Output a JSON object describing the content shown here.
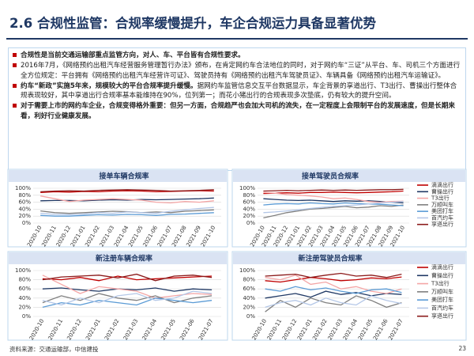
{
  "header": {
    "title": "2.6 合规性监管：合规率缓慢提升，车企合规运力具备显著优势"
  },
  "bullets": [
    {
      "strong": "合规性是当前交通运输部重点监管方向，对人、车、平台皆有合规性要求。"
    },
    {
      "text": "2016年7月，《网络预约出租汽车经营服务管理暂行办法》颁布，在肯定网约车合法地位的同时，对于网约车“三证”从平台、车、司机三个方面进行全方位规定：平台拥有《网络预约出租汽车经营许可证》、驾驶员持有《网络预约出租汽车驾驶员证》、车辆具备《网络预约出租汽车运输证》。"
    },
    {
      "strong": "约车“新政”实施5年来，规模较大的平台合规率提升缓慢。",
      "text": "据网约车监管信息交互平台数据显示，车企背景的享道出行、T3出行、曹操出行整体合规表现较好，其中享道出行合规率基本能维持在90%，位列第一；而花小猪出行的合规表现多次垫底，仍有较大的提升空间。"
    },
    {
      "strong": "对于需要上市的网约车企业，合规变得格外重要：但另一方面，合规趋严也会加大司机的流失，在一定程度上会限制平台的发展速度，但是长期来看，利好行业健康发展。"
    }
  ],
  "source": "资料来源：交通运输部，中信建投",
  "page_number": "23",
  "chart_data": [
    {
      "type": "line",
      "title": "接单车辆合规率",
      "grid": true,
      "categories": [
        "2020-10",
        "2020-11",
        "2020-12",
        "2021-01",
        "2021-02",
        "2021-03",
        "2021-04",
        "2021-05",
        "2021-06",
        "2021-07",
        "2021-08",
        "2021-09",
        "2021-10"
      ],
      "ylim": [
        0,
        100
      ],
      "yticks": [
        {
          "value": 0,
          "label": "0%"
        },
        {
          "value": 20,
          "label": "20%"
        },
        {
          "value": 40,
          "label": "40%"
        },
        {
          "value": 60,
          "label": "60%"
        },
        {
          "value": 80,
          "label": "80%"
        },
        {
          "value": 100,
          "label": "100%"
        }
      ],
      "series": [
        {
          "name": "滴滴出行",
          "color": "#c00000",
          "values": [
            88,
            90,
            89,
            91,
            90,
            92,
            93,
            92,
            90,
            91,
            92,
            93,
            92
          ]
        },
        {
          "name": "曹操出行",
          "color": "#1f3864",
          "values": [
            64,
            65,
            65,
            64,
            66,
            67,
            66,
            68,
            67,
            68,
            69,
            70,
            72
          ]
        },
        {
          "name": "T3出行",
          "color": "#f4a6a6",
          "values": [
            78,
            70,
            62,
            66,
            68,
            70,
            68,
            66,
            60,
            58,
            62,
            60,
            64
          ]
        },
        {
          "name": "万顺叫车",
          "color": "#7f7f7f",
          "values": [
            35,
            30,
            28,
            30,
            32,
            34,
            33,
            30,
            32,
            30,
            34,
            36,
            38
          ]
        },
        {
          "name": "美团打车",
          "color": "#5b9bd5",
          "values": [
            22,
            20,
            20,
            22,
            24,
            23,
            25,
            24,
            22,
            25,
            26,
            28,
            30
          ]
        },
        {
          "name": "首汽约车",
          "color": "#b4c7e7",
          "values": [
            28,
            25,
            24,
            26,
            30,
            28,
            32,
            30,
            28,
            34,
            38,
            42,
            45
          ]
        },
        {
          "name": "享道出行",
          "color": "#8b1a1a",
          "values": [
            90,
            92,
            93,
            92,
            94,
            95,
            96,
            95,
            94,
            92,
            93,
            94,
            96
          ]
        }
      ]
    },
    {
      "type": "line",
      "title": "接单驾驶员合规率",
      "grid": true,
      "legend": "right",
      "categories": [
        "2020-10",
        "2020-11",
        "2020-12",
        "2021-01",
        "2021-02",
        "2021-03",
        "2021-04",
        "2021-05",
        "2021-06",
        "2021-07",
        "2021-08",
        "2021-09",
        "2021-10"
      ],
      "ylim": [
        0,
        100
      ],
      "yticks": [
        {
          "value": 0,
          "label": "0%"
        },
        {
          "value": 20,
          "label": "20%"
        },
        {
          "value": 40,
          "label": "40%"
        },
        {
          "value": 60,
          "label": "60%"
        },
        {
          "value": 80,
          "label": "80%"
        },
        {
          "value": 100,
          "label": "100%"
        }
      ],
      "series": [
        {
          "name": "滴滴出行",
          "color": "#c00000",
          "values": [
            85,
            86,
            87,
            86,
            88,
            88,
            89,
            88,
            87,
            88,
            89,
            90,
            92
          ]
        },
        {
          "name": "曹操出行",
          "color": "#1f3864",
          "values": [
            70,
            68,
            66,
            65,
            66,
            64,
            62,
            64,
            63,
            64,
            62,
            60,
            58
          ]
        },
        {
          "name": "T3出行",
          "color": "#f4a6a6",
          "values": [
            88,
            86,
            82,
            80,
            78,
            75,
            70,
            72,
            68,
            62,
            60,
            62,
            63
          ]
        },
        {
          "name": "万顺叫车",
          "color": "#7f7f7f",
          "values": [
            15,
            22,
            30,
            35,
            40,
            42,
            45,
            48,
            44,
            46,
            50,
            48,
            52
          ]
        },
        {
          "name": "美团打车",
          "color": "#5b9bd5",
          "values": [
            52,
            55,
            56,
            55,
            58,
            56,
            55,
            58,
            56,
            55,
            54,
            52,
            50
          ]
        },
        {
          "name": "首汽约车",
          "color": "#b4c7e7",
          "values": [
            30,
            32,
            35,
            38,
            42,
            45,
            48,
            50,
            52,
            55,
            58,
            60,
            62
          ]
        },
        {
          "name": "享道出行",
          "color": "#8b1a1a",
          "values": [
            92,
            93,
            94,
            93,
            94,
            95,
            94,
            95,
            94,
            95,
            96,
            96,
            97
          ]
        }
      ]
    },
    {
      "type": "line",
      "title": "新注册车辆合规率",
      "grid": true,
      "categories": [
        "2020-10",
        "2020-11",
        "2020-12",
        "2021-01",
        "2021-02",
        "2021-03",
        "2021-04",
        "2021-05",
        "2021-06",
        "2021-07"
      ],
      "ylim": [
        0,
        100
      ],
      "yticks": [
        {
          "value": 0,
          "label": "0%"
        },
        {
          "value": 20,
          "label": "20%"
        },
        {
          "value": 40,
          "label": "40%"
        },
        {
          "value": 60,
          "label": "60%"
        },
        {
          "value": 80,
          "label": "80%"
        },
        {
          "value": 100,
          "label": "100%"
        }
      ],
      "series": [
        {
          "name": "滴滴出行",
          "color": "#c00000",
          "values": [
            82,
            80,
            85,
            78,
            88,
            80,
            82,
            84,
            86,
            88
          ]
        },
        {
          "name": "曹操出行",
          "color": "#1f3864",
          "values": [
            60,
            62,
            58,
            55,
            60,
            58,
            62,
            55,
            60,
            58
          ]
        },
        {
          "name": "T3出行",
          "color": "#f4a6a6",
          "values": [
            90,
            70,
            50,
            65,
            60,
            55,
            40,
            45,
            50,
            48
          ]
        },
        {
          "name": "万顺叫车",
          "color": "#7f7f7f",
          "values": [
            30,
            45,
            35,
            50,
            40,
            35,
            45,
            30,
            40,
            45
          ]
        },
        {
          "name": "美团打车",
          "color": "#5b9bd5",
          "values": [
            20,
            30,
            25,
            35,
            30,
            25,
            40,
            35,
            30,
            35
          ]
        },
        {
          "name": "首汽约车",
          "color": "#b4c7e7",
          "values": [
            35,
            25,
            40,
            30,
            45,
            50,
            35,
            40,
            55,
            50
          ]
        },
        {
          "name": "享道出行",
          "color": "#8b1a1a",
          "values": [
            80,
            86,
            88,
            90,
            84,
            92,
            78,
            88,
            90,
            85
          ]
        }
      ]
    },
    {
      "type": "line",
      "title": "新注册驾驶员合规率",
      "grid": true,
      "legend": "right",
      "categories": [
        "2020-10",
        "2020-11",
        "2020-12",
        "2021-01",
        "2021-02",
        "2021-03",
        "2021-04",
        "2021-05",
        "2021-06",
        "2021-07"
      ],
      "ylim": [
        0,
        100
      ],
      "yticks": [
        {
          "value": 0,
          "label": "0%"
        },
        {
          "value": 20,
          "label": "20%"
        },
        {
          "value": 40,
          "label": "40%"
        },
        {
          "value": 60,
          "label": "60%"
        },
        {
          "value": 80,
          "label": "80%"
        },
        {
          "value": 100,
          "label": "100%"
        }
      ],
      "series": [
        {
          "name": "滴滴出行",
          "color": "#c00000",
          "values": [
            78,
            75,
            80,
            85,
            82,
            78,
            80,
            84,
            82,
            86
          ]
        },
        {
          "name": "曹操出行",
          "color": "#1f3864",
          "values": [
            40,
            45,
            50,
            42,
            55,
            48,
            52,
            45,
            50,
            48
          ]
        },
        {
          "name": "T3出行",
          "color": "#f4a6a6",
          "values": [
            85,
            80,
            90,
            70,
            75,
            60,
            65,
            55,
            50,
            60
          ]
        },
        {
          "name": "万顺叫车",
          "color": "#7f7f7f",
          "values": [
            10,
            35,
            20,
            40,
            30,
            25,
            45,
            35,
            20,
            30
          ]
        },
        {
          "name": "美团打车",
          "color": "#5b9bd5",
          "values": [
            60,
            55,
            65,
            58,
            62,
            55,
            50,
            58,
            60,
            52
          ]
        },
        {
          "name": "首汽约车",
          "color": "#b4c7e7",
          "values": [
            20,
            30,
            35,
            25,
            40,
            30,
            25,
            45,
            35,
            28
          ]
        },
        {
          "name": "享道出行",
          "color": "#8b1a1a",
          "values": [
            88,
            90,
            92,
            85,
            90,
            94,
            88,
            90,
            85,
            92
          ]
        }
      ]
    }
  ]
}
